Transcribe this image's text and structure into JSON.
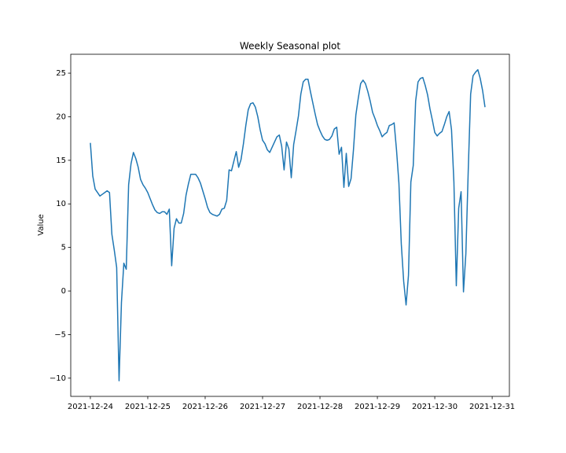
{
  "chart_data": {
    "type": "line",
    "title": "Weekly Seasonal plot",
    "y_label": "Value",
    "color": "#1f77b4",
    "xlim": [
      "2021-12-23T15:48",
      "2021-12-31T07:12"
    ],
    "xticks": [
      "2021-12-24",
      "2021-12-25",
      "2021-12-26",
      "2021-12-27",
      "2021-12-28",
      "2021-12-29",
      "2021-12-30",
      "2021-12-31"
    ],
    "ylim": [
      -12.09,
      27.17
    ],
    "yticks": [
      {
        "value": -10,
        "label": "−10"
      },
      {
        "value": -5,
        "label": "−5"
      },
      0,
      5,
      10,
      15,
      20,
      25
    ],
    "x": [
      "2021-12-24T00:00",
      "2021-12-24T01:00",
      "2021-12-24T02:00",
      "2021-12-24T03:00",
      "2021-12-24T04:00",
      "2021-12-24T05:00",
      "2021-12-24T06:00",
      "2021-12-24T07:00",
      "2021-12-24T08:00",
      "2021-12-24T09:00",
      "2021-12-24T10:00",
      "2021-12-24T11:00",
      "2021-12-24T12:00",
      "2021-12-24T13:00",
      "2021-12-24T14:00",
      "2021-12-24T15:00",
      "2021-12-24T16:00",
      "2021-12-24T17:00",
      "2021-12-24T18:00",
      "2021-12-24T19:00",
      "2021-12-24T20:00",
      "2021-12-24T21:00",
      "2021-12-24T22:00",
      "2021-12-24T23:00",
      "2021-12-25T00:00",
      "2021-12-25T01:00",
      "2021-12-25T02:00",
      "2021-12-25T03:00",
      "2021-12-25T04:00",
      "2021-12-25T05:00",
      "2021-12-25T06:00",
      "2021-12-25T07:00",
      "2021-12-25T08:00",
      "2021-12-25T09:00",
      "2021-12-25T10:00",
      "2021-12-25T11:00",
      "2021-12-25T12:00",
      "2021-12-25T13:00",
      "2021-12-25T14:00",
      "2021-12-25T15:00",
      "2021-12-25T16:00",
      "2021-12-25T17:00",
      "2021-12-25T18:00",
      "2021-12-25T19:00",
      "2021-12-25T20:00",
      "2021-12-25T21:00",
      "2021-12-25T22:00",
      "2021-12-25T23:00",
      "2021-12-26T00:00",
      "2021-12-26T01:00",
      "2021-12-26T02:00",
      "2021-12-26T03:00",
      "2021-12-26T04:00",
      "2021-12-26T05:00",
      "2021-12-26T06:00",
      "2021-12-26T07:00",
      "2021-12-26T08:00",
      "2021-12-26T09:00",
      "2021-12-26T10:00",
      "2021-12-26T11:00",
      "2021-12-26T12:00",
      "2021-12-26T13:00",
      "2021-12-26T14:00",
      "2021-12-26T15:00",
      "2021-12-26T16:00",
      "2021-12-26T17:00",
      "2021-12-26T18:00",
      "2021-12-26T19:00",
      "2021-12-26T20:00",
      "2021-12-26T21:00",
      "2021-12-26T22:00",
      "2021-12-26T23:00",
      "2021-12-27T00:00",
      "2021-12-27T01:00",
      "2021-12-27T02:00",
      "2021-12-27T03:00",
      "2021-12-27T04:00",
      "2021-12-27T05:00",
      "2021-12-27T06:00",
      "2021-12-27T07:00",
      "2021-12-27T08:00",
      "2021-12-27T09:00",
      "2021-12-27T10:00",
      "2021-12-27T11:00",
      "2021-12-27T12:00",
      "2021-12-27T13:00",
      "2021-12-27T14:00",
      "2021-12-27T15:00",
      "2021-12-27T16:00",
      "2021-12-27T17:00",
      "2021-12-27T18:00",
      "2021-12-27T19:00",
      "2021-12-27T20:00",
      "2021-12-27T21:00",
      "2021-12-27T22:00",
      "2021-12-27T23:00",
      "2021-12-28T00:00",
      "2021-12-28T01:00",
      "2021-12-28T02:00",
      "2021-12-28T03:00",
      "2021-12-28T04:00",
      "2021-12-28T05:00",
      "2021-12-28T06:00",
      "2021-12-28T07:00",
      "2021-12-28T08:00",
      "2021-12-28T09:00",
      "2021-12-28T10:00",
      "2021-12-28T11:00",
      "2021-12-28T12:00",
      "2021-12-28T13:00",
      "2021-12-28T14:00",
      "2021-12-28T15:00",
      "2021-12-28T16:00",
      "2021-12-28T17:00",
      "2021-12-28T18:00",
      "2021-12-28T19:00",
      "2021-12-28T20:00",
      "2021-12-28T21:00",
      "2021-12-28T22:00",
      "2021-12-28T23:00",
      "2021-12-29T00:00",
      "2021-12-29T01:00",
      "2021-12-29T02:00",
      "2021-12-29T03:00",
      "2021-12-29T04:00",
      "2021-12-29T05:00",
      "2021-12-29T06:00",
      "2021-12-29T07:00",
      "2021-12-29T08:00",
      "2021-12-29T09:00",
      "2021-12-29T10:00",
      "2021-12-29T11:00",
      "2021-12-29T12:00",
      "2021-12-29T13:00",
      "2021-12-29T14:00",
      "2021-12-29T15:00",
      "2021-12-29T16:00",
      "2021-12-29T17:00",
      "2021-12-29T18:00",
      "2021-12-29T19:00",
      "2021-12-29T20:00",
      "2021-12-29T21:00",
      "2021-12-29T22:00",
      "2021-12-29T23:00",
      "2021-12-30T00:00",
      "2021-12-30T01:00",
      "2021-12-30T02:00",
      "2021-12-30T03:00",
      "2021-12-30T04:00",
      "2021-12-30T05:00",
      "2021-12-30T06:00",
      "2021-12-30T07:00",
      "2021-12-30T08:00",
      "2021-12-30T09:00",
      "2021-12-30T10:00",
      "2021-12-30T11:00",
      "2021-12-30T12:00",
      "2021-12-30T13:00",
      "2021-12-30T14:00",
      "2021-12-30T15:00",
      "2021-12-30T16:00",
      "2021-12-30T17:00",
      "2021-12-30T18:00",
      "2021-12-30T19:00",
      "2021-12-30T20:00",
      "2021-12-30T21:00"
    ],
    "values": [
      17.0,
      13.2,
      11.7,
      11.3,
      10.9,
      11.1,
      11.3,
      11.5,
      11.3,
      6.5,
      4.7,
      2.7,
      -10.3,
      -1.3,
      3.2,
      2.5,
      12.2,
      14.6,
      15.9,
      15.2,
      14.2,
      12.8,
      12.2,
      11.8,
      11.3,
      10.6,
      9.9,
      9.3,
      9.0,
      8.9,
      9.1,
      9.1,
      8.8,
      9.4,
      2.9,
      7.2,
      8.3,
      7.8,
      7.8,
      8.9,
      11.0,
      12.3,
      13.4,
      13.4,
      13.4,
      13.0,
      12.4,
      11.5,
      10.6,
      9.6,
      9.0,
      8.8,
      8.7,
      8.6,
      8.8,
      9.4,
      9.5,
      10.4,
      13.9,
      13.8,
      14.9,
      16.0,
      14.2,
      15.1,
      16.9,
      19.0,
      20.8,
      21.5,
      21.6,
      21.1,
      20.0,
      18.5,
      17.3,
      16.9,
      16.2,
      15.9,
      16.5,
      17.1,
      17.7,
      17.9,
      16.6,
      13.9,
      17.1,
      16.3,
      13.0,
      16.8,
      18.4,
      20.1,
      22.6,
      24.0,
      24.3,
      24.3,
      22.9,
      21.6,
      20.3,
      19.1,
      18.4,
      17.8,
      17.4,
      17.3,
      17.4,
      17.8,
      18.6,
      18.8,
      15.7,
      16.5,
      11.9,
      15.8,
      12.0,
      12.9,
      16.2,
      20.2,
      22.1,
      23.8,
      24.2,
      23.8,
      22.9,
      21.8,
      20.5,
      19.8,
      19.0,
      18.4,
      17.7,
      18.0,
      18.2,
      19.0,
      19.1,
      19.3,
      16.2,
      12.4,
      5.4,
      1.1,
      -1.6,
      1.8,
      12.5,
      14.4,
      21.8,
      24.0,
      24.4,
      24.5,
      23.6,
      22.5,
      20.9,
      19.6,
      18.2,
      17.8,
      18.1,
      18.3,
      19.1,
      20.0,
      20.6,
      18.5,
      12.5,
      0.6,
      9.5,
      11.4,
      -0.1,
      4.3,
      13.9,
      22.6,
      24.7,
      25.1,
      25.4,
      24.4,
      23.0,
      21.1
    ]
  }
}
